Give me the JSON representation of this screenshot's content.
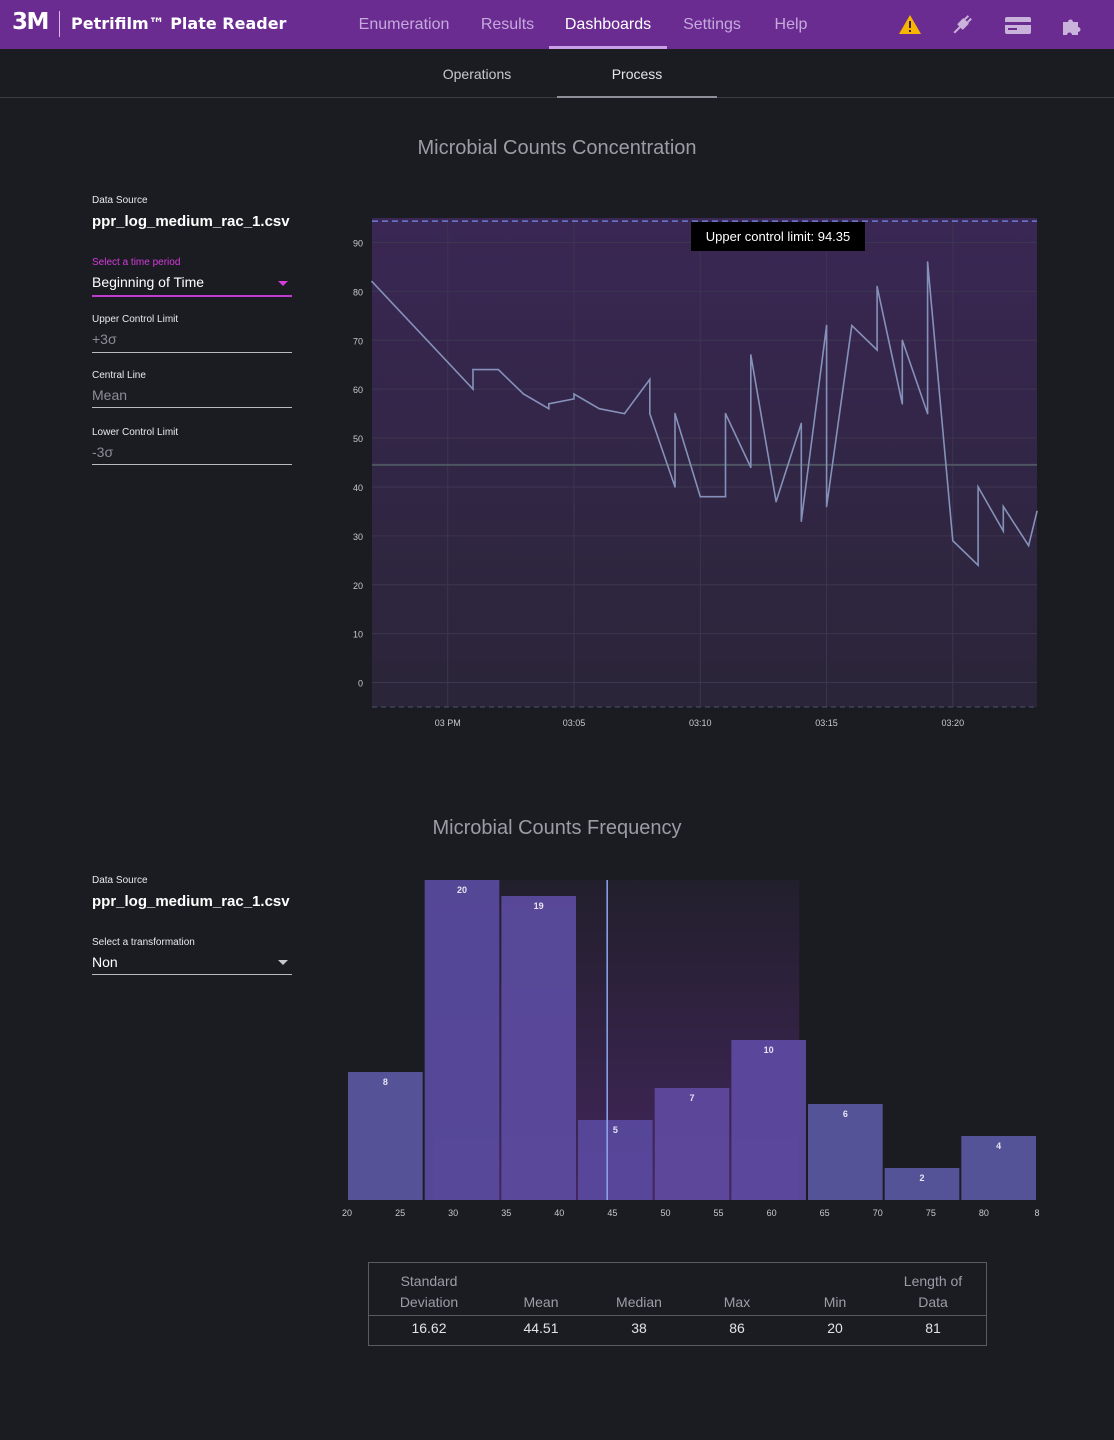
{
  "header": {
    "logo": "3M",
    "app_title": "Petrifilm™ Plate Reader",
    "nav": [
      "Enumeration",
      "Results",
      "Dashboards",
      "Settings",
      "Help"
    ],
    "active_nav": "Dashboards",
    "icons": [
      "warning-icon",
      "plugin-icon",
      "card-icon",
      "puzzle-icon"
    ],
    "accent": "#6a2c91"
  },
  "subnav": {
    "tabs": [
      "Operations",
      "Process"
    ],
    "active": "Process"
  },
  "concentration": {
    "title": "Microbial Counts Concentration",
    "data_source_label": "Data Source",
    "data_source": "ppr_log_medium_rac_1.csv",
    "time_period_label": "Select a time period",
    "time_period": "Beginning of Time",
    "ucl_label": "Upper Control Limit",
    "ucl_value": "+3σ",
    "cl_label": "Central Line",
    "cl_value": "Mean",
    "lcl_label": "Lower Control Limit",
    "lcl_value": "-3σ",
    "tooltip": "Upper control limit: 94.35"
  },
  "frequency": {
    "title": "Microbial Counts Frequency",
    "data_source_label": "Data Source",
    "data_source": "ppr_log_medium_rac_1.csv",
    "transform_label": "Select a transformation",
    "transform": "Non"
  },
  "stats": {
    "headers": [
      "Standard\nDeviation",
      "Mean",
      "Median",
      "Max",
      "Min",
      "Length of\nData"
    ],
    "values": [
      "16.62",
      "44.51",
      "38",
      "86",
      "20",
      "81"
    ]
  },
  "chart_data": [
    {
      "type": "line",
      "title": "Microbial Counts Concentration",
      "xlabel": "",
      "ylabel": "",
      "x_tick_labels": [
        "03 PM",
        "03:05",
        "03:10",
        "03:15",
        "03:20"
      ],
      "y_tick_labels": [
        "0",
        "10",
        "20",
        "30",
        "40",
        "50",
        "60",
        "70",
        "80",
        "90"
      ],
      "xlim": [
        "14:57",
        "15:23:20"
      ],
      "ylim": [
        -5,
        95
      ],
      "upper_control_limit": 94.35,
      "central_line": 44.51,
      "grid": true,
      "series": [
        {
          "color": "#8591b9",
          "x": [
            "14:57",
            "15:01",
            "15:01",
            "15:02",
            "15:03",
            "15:04",
            "15:04",
            "15:05",
            "15:05",
            "15:06",
            "15:07",
            "15:08",
            "15:08",
            "15:09",
            "15:09",
            "15:10",
            "15:11",
            "15:11",
            "15:12",
            "15:12",
            "15:13",
            "15:14",
            "15:14",
            "15:15",
            "15:15",
            "15:16",
            "15:17",
            "15:17",
            "15:18",
            "15:18",
            "15:19",
            "15:19",
            "15:20",
            "15:21",
            "15:21",
            "15:22",
            "15:22",
            "15:23",
            "15:23:20"
          ],
          "values": [
            82,
            60,
            64,
            64,
            59,
            56,
            57,
            58,
            59,
            56,
            55,
            62,
            55,
            40,
            55,
            38,
            38,
            55,
            44,
            67,
            37,
            53,
            33,
            73,
            36,
            73,
            68,
            81,
            57,
            70,
            55,
            86,
            29,
            24,
            40,
            31,
            36,
            28,
            35
          ]
        }
      ]
    },
    {
      "type": "bar",
      "title": "Microbial Counts Frequency",
      "xlabel": "",
      "ylabel": "",
      "x_tick_labels": [
        "20",
        "25",
        "30",
        "35",
        "40",
        "45",
        "50",
        "55",
        "60",
        "65",
        "70",
        "75",
        "80",
        "8"
      ],
      "categories": [
        "20-27.1",
        "27.1-34.3",
        "34.3-41.4",
        "41.4-48.6",
        "48.6-55.7",
        "55.7-62.9",
        "62.9-70",
        "70-77.1",
        "77.1-84.3"
      ],
      "values": [
        8,
        20,
        19,
        5,
        7,
        10,
        6,
        2,
        4
      ],
      "mean_marker": 44.51,
      "bar_colors": [
        "#5b57a2",
        "#594ba0",
        "#5c4ca1",
        "#59499e",
        "#5e4aa1",
        "#5d4aa2",
        "#5a58a2",
        "#5a58a2",
        "#5a58a2"
      ]
    }
  ]
}
